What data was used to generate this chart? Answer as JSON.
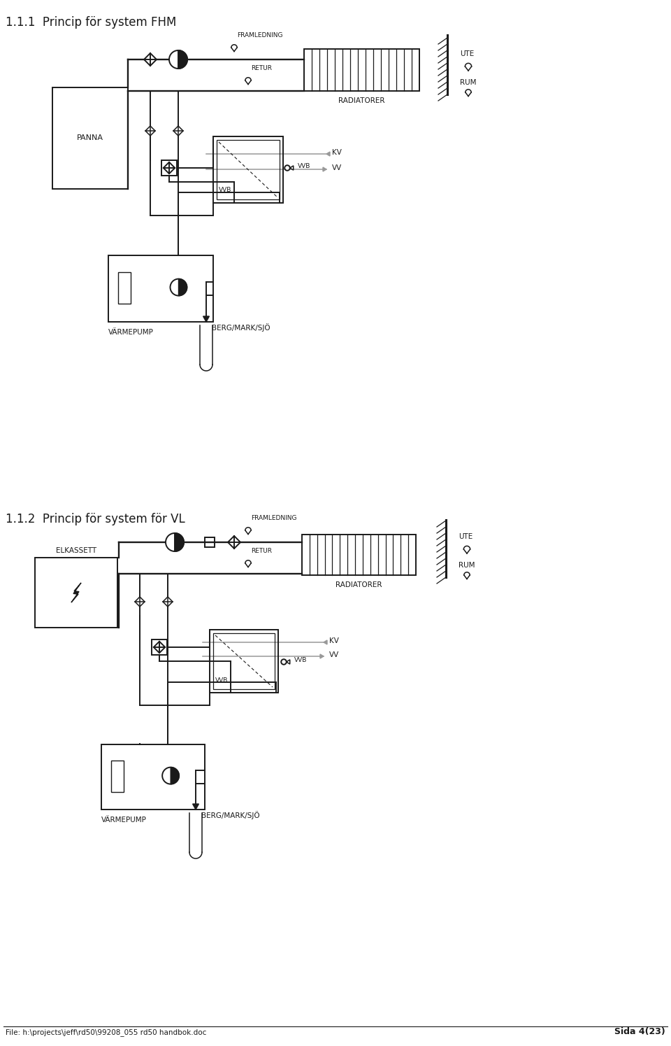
{
  "title1": "1.1.1  Princip för system FHM",
  "title2": "1.1.2  Princip för system för VL",
  "footer_left": "File: h:\\projects\\jeff\\rd50\\99208_055 rd50 handbok.doc",
  "footer_right": "Sida 4(23)",
  "bg_color": "#ffffff",
  "line_color": "#1a1a1a",
  "gray_line_color": "#999999",
  "font_size_title": 12,
  "font_size_label": 7,
  "font_size_footer": 7.5
}
